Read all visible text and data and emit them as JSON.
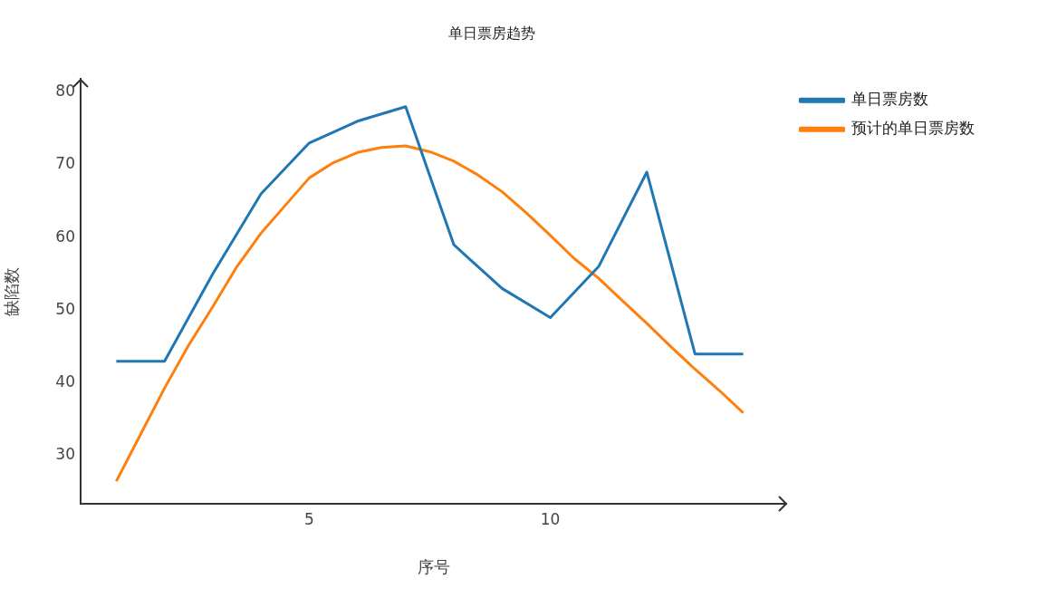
{
  "chart_data": {
    "type": "line",
    "title": "单日票房趋势",
    "xlabel": "序号",
    "ylabel": "缺陷数",
    "x": [
      1,
      2,
      3,
      4,
      5,
      6,
      7,
      8,
      9,
      10,
      11,
      12,
      13,
      14
    ],
    "series": [
      {
        "name": "单日票房数",
        "color": "#1f77b4",
        "values": [
          43,
          43,
          55,
          66,
          73,
          76,
          78,
          59,
          53,
          49,
          56,
          69,
          44,
          44
        ]
      },
      {
        "name": "预计的单日票房数",
        "color": "#ff7f0e",
        "x": [
          1,
          1.5,
          2,
          2.5,
          3,
          3.5,
          4,
          4.5,
          5,
          5.5,
          6,
          6.5,
          7,
          7.5,
          8,
          8.5,
          9,
          9.5,
          10,
          10.5,
          11,
          11.5,
          12,
          12.5,
          13,
          13.5,
          14
        ],
        "values": [
          26.5,
          32.9,
          39.3,
          45.2,
          50.5,
          56.0,
          60.6,
          64.4,
          68.2,
          70.3,
          71.7,
          72.4,
          72.6,
          71.8,
          70.5,
          68.6,
          66.3,
          63.4,
          60.3,
          57.1,
          54.4,
          51.3,
          48.2,
          45.0,
          41.9,
          39.0,
          35.9
        ]
      }
    ],
    "xlim": [
      0.26,
      14.9
    ],
    "xticks": [
      5,
      10
    ],
    "ylim": [
      23.4,
      81.8
    ],
    "yticks": [
      30,
      40,
      50,
      60,
      70,
      80
    ],
    "legend": "top right"
  }
}
